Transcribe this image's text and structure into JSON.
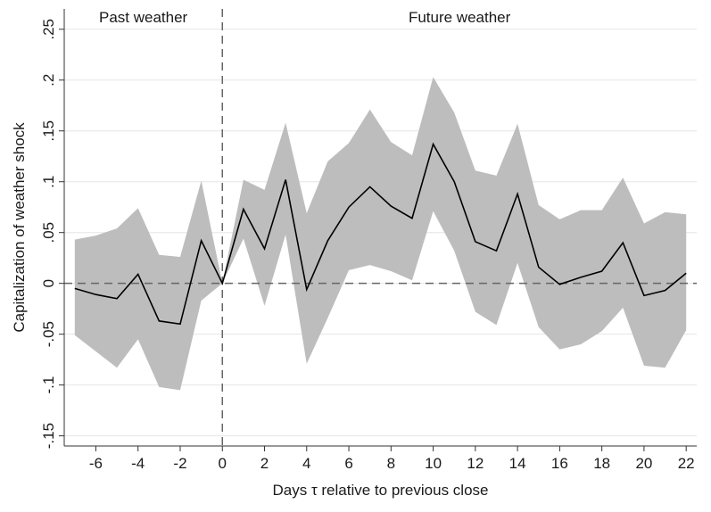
{
  "chart_data": {
    "type": "line",
    "title": "",
    "xlabel": "Days τ relative to previous close",
    "ylabel": "Capitalization of weather shock",
    "xlim": [
      -7.5,
      22.5
    ],
    "ylim": [
      -0.16,
      0.27
    ],
    "x_ticks": [
      -6,
      -4,
      -2,
      0,
      2,
      4,
      6,
      8,
      10,
      12,
      14,
      16,
      18,
      20,
      22
    ],
    "x_tick_labels": [
      "-6",
      "-4",
      "-2",
      "0",
      "2",
      "4",
      "6",
      "8",
      "10",
      "12",
      "14",
      "16",
      "18",
      "20",
      "22"
    ],
    "y_ticks": [
      -0.15,
      -0.1,
      -0.05,
      0,
      0.05,
      0.1,
      0.15,
      0.2,
      0.25
    ],
    "y_tick_labels": [
      "-.15",
      "-.1",
      "-.05",
      "0",
      ".05",
      ".1",
      ".15",
      ".2",
      ".25"
    ],
    "grid": "horizontal",
    "annotations": [
      {
        "text": "Past weather",
        "side": "left"
      },
      {
        "text": "Future weather",
        "side": "right"
      }
    ],
    "reference_lines": [
      {
        "axis": "x",
        "value": 0,
        "style": "dashed"
      },
      {
        "axis": "y",
        "value": 0,
        "style": "dashed"
      }
    ],
    "x": [
      -7,
      -6,
      -5,
      -4,
      -3,
      -2,
      -1,
      0,
      1,
      2,
      3,
      4,
      5,
      6,
      7,
      8,
      9,
      10,
      11,
      12,
      13,
      14,
      15,
      16,
      17,
      18,
      19,
      20,
      21,
      22
    ],
    "series": [
      {
        "values": [
          -0.005,
          -0.011,
          -0.015,
          0.009,
          -0.037,
          -0.04,
          0.042,
          0.0,
          0.073,
          0.034,
          0.102,
          -0.006,
          0.042,
          0.075,
          0.095,
          0.076,
          0.064,
          0.137,
          0.1,
          0.041,
          0.032,
          0.088,
          0.016,
          -0.001,
          0.006,
          0.012,
          0.04,
          -0.012,
          -0.007,
          0.01
        ],
        "ci_lower": [
          -0.051,
          -0.067,
          -0.083,
          -0.055,
          -0.102,
          -0.105,
          -0.017,
          0.0,
          0.044,
          -0.022,
          0.048,
          -0.079,
          -0.034,
          0.013,
          0.018,
          0.012,
          0.003,
          0.071,
          0.032,
          -0.028,
          -0.041,
          0.02,
          -0.043,
          -0.065,
          -0.06,
          -0.047,
          -0.024,
          -0.081,
          -0.083,
          -0.046
        ],
        "ci_upper": [
          0.043,
          0.047,
          0.054,
          0.074,
          0.028,
          0.026,
          0.101,
          0.0,
          0.102,
          0.092,
          0.158,
          0.069,
          0.12,
          0.138,
          0.171,
          0.139,
          0.126,
          0.203,
          0.168,
          0.111,
          0.106,
          0.157,
          0.077,
          0.063,
          0.072,
          0.072,
          0.104,
          0.059,
          0.07,
          0.068
        ]
      }
    ],
    "colors": {
      "line": "#000000",
      "band": "#bdbdbd",
      "grid": "#e6e6e6",
      "reference": "#666666",
      "axis": "#333333"
    }
  }
}
